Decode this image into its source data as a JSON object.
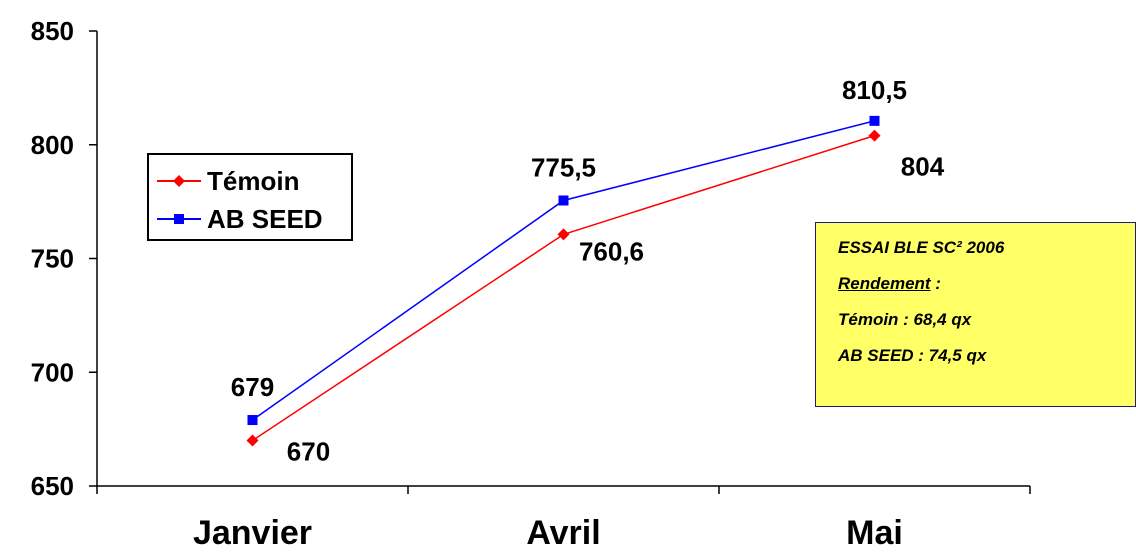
{
  "chart_data": {
    "type": "line",
    "categories": [
      "Janvier",
      "Avril",
      "Mai"
    ],
    "series": [
      {
        "name": "Témoin",
        "values": [
          670,
          760.6,
          804
        ],
        "labels": [
          "670",
          "760,6",
          "804"
        ],
        "color": "#ff0000",
        "marker": "diamond"
      },
      {
        "name": "AB SEED",
        "values": [
          679,
          775.5,
          810.5
        ],
        "labels": [
          "679",
          "775,5",
          "810,5"
        ],
        "color": "#0000ff",
        "marker": "square"
      }
    ],
    "ylim": [
      650,
      850
    ],
    "yticks": [
      650,
      700,
      750,
      800,
      850
    ],
    "title": "",
    "xlabel": "",
    "ylabel": "",
    "grid": false,
    "legend_position": "left"
  },
  "annotation": {
    "line1": "ESSAI BLE SC² 2006",
    "line2": "Rendement",
    "line2_suffix": " :",
    "line3": "Témoin : 68,4 qx",
    "line4": "AB SEED : 74,5 qx"
  }
}
